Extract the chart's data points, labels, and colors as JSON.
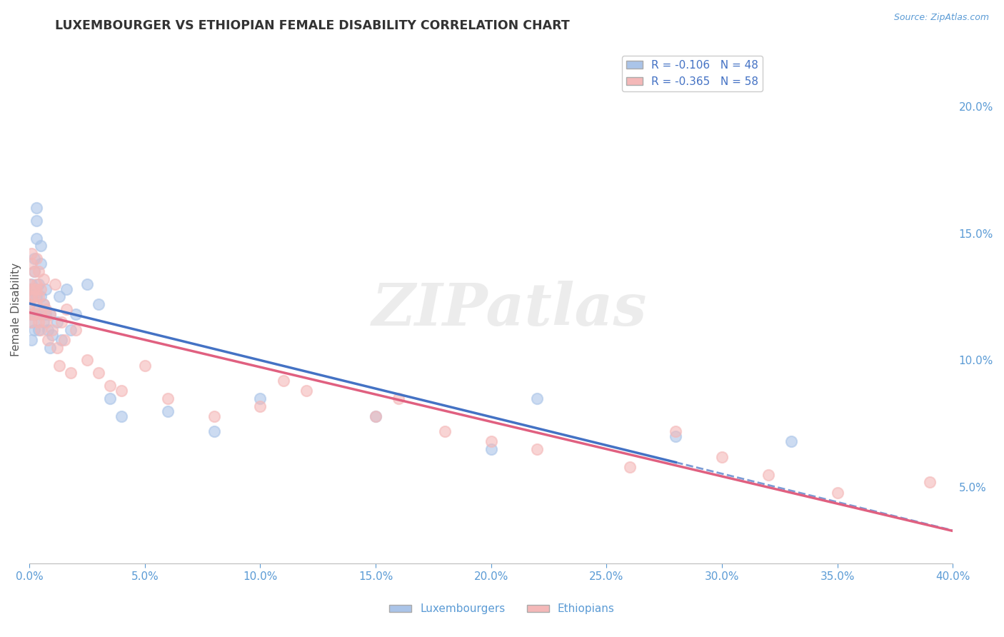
{
  "title": "LUXEMBOURGER VS ETHIOPIAN FEMALE DISABILITY CORRELATION CHART",
  "source": "Source: ZipAtlas.com",
  "ylabel": "Female Disability",
  "xlim": [
    0.0,
    0.4
  ],
  "ylim": [
    0.02,
    0.22
  ],
  "yticks": [
    0.05,
    0.1,
    0.15,
    0.2
  ],
  "lux_color": "#aac4e8",
  "eth_color": "#f4b8b8",
  "lux_line_color": "#4472c4",
  "eth_line_color": "#e06080",
  "lux_R": -0.106,
  "lux_N": 48,
  "eth_R": -0.365,
  "eth_N": 58,
  "background_color": "#ffffff",
  "grid_color": "#cccccc",
  "watermark": "ZIPatlas",
  "tick_color": "#5b9bd5",
  "axis_color": "#888888",
  "lux_x": [
    0.0,
    0.0,
    0.001,
    0.001,
    0.001,
    0.001,
    0.001,
    0.002,
    0.002,
    0.002,
    0.002,
    0.003,
    0.003,
    0.003,
    0.003,
    0.003,
    0.004,
    0.004,
    0.004,
    0.005,
    0.005,
    0.005,
    0.006,
    0.006,
    0.007,
    0.007,
    0.008,
    0.009,
    0.009,
    0.01,
    0.012,
    0.013,
    0.014,
    0.016,
    0.018,
    0.02,
    0.025,
    0.03,
    0.035,
    0.04,
    0.06,
    0.08,
    0.1,
    0.15,
    0.2,
    0.22,
    0.28,
    0.33
  ],
  "lux_y": [
    0.118,
    0.122,
    0.13,
    0.125,
    0.115,
    0.128,
    0.108,
    0.135,
    0.14,
    0.112,
    0.118,
    0.155,
    0.16,
    0.148,
    0.125,
    0.118,
    0.13,
    0.12,
    0.112,
    0.145,
    0.138,
    0.125,
    0.115,
    0.122,
    0.118,
    0.128,
    0.112,
    0.105,
    0.118,
    0.11,
    0.115,
    0.125,
    0.108,
    0.128,
    0.112,
    0.118,
    0.13,
    0.122,
    0.085,
    0.078,
    0.08,
    0.072,
    0.085,
    0.078,
    0.065,
    0.085,
    0.07,
    0.068
  ],
  "eth_x": [
    0.0,
    0.0,
    0.0,
    0.001,
    0.001,
    0.001,
    0.001,
    0.001,
    0.002,
    0.002,
    0.002,
    0.002,
    0.003,
    0.003,
    0.003,
    0.003,
    0.004,
    0.004,
    0.004,
    0.005,
    0.005,
    0.005,
    0.006,
    0.006,
    0.007,
    0.007,
    0.008,
    0.009,
    0.01,
    0.011,
    0.012,
    0.013,
    0.014,
    0.015,
    0.016,
    0.018,
    0.02,
    0.025,
    0.03,
    0.035,
    0.04,
    0.05,
    0.06,
    0.08,
    0.1,
    0.11,
    0.12,
    0.15,
    0.16,
    0.18,
    0.2,
    0.22,
    0.26,
    0.28,
    0.3,
    0.32,
    0.35,
    0.39
  ],
  "eth_y": [
    0.128,
    0.122,
    0.13,
    0.118,
    0.138,
    0.142,
    0.125,
    0.115,
    0.135,
    0.128,
    0.118,
    0.125,
    0.14,
    0.13,
    0.122,
    0.128,
    0.135,
    0.115,
    0.125,
    0.118,
    0.128,
    0.112,
    0.122,
    0.132,
    0.115,
    0.12,
    0.108,
    0.118,
    0.112,
    0.13,
    0.105,
    0.098,
    0.115,
    0.108,
    0.12,
    0.095,
    0.112,
    0.1,
    0.095,
    0.09,
    0.088,
    0.098,
    0.085,
    0.078,
    0.082,
    0.092,
    0.088,
    0.078,
    0.085,
    0.072,
    0.068,
    0.065,
    0.058,
    0.072,
    0.062,
    0.055,
    0.048,
    0.052
  ]
}
